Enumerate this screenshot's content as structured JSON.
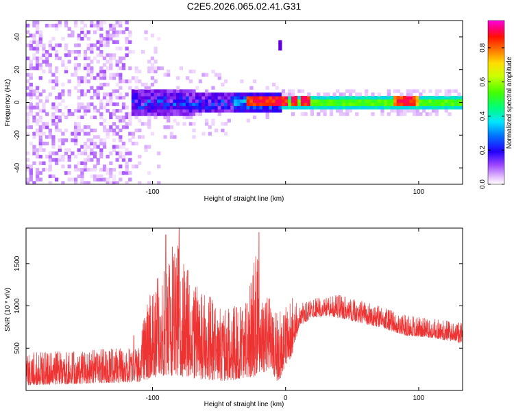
{
  "title": "C2E5.2026.065.02.41.G31",
  "colors": {
    "snr_line": "#ee3333",
    "colormap": [
      "#ffffff",
      "#e8c6ff",
      "#b266ff",
      "#6a00e0",
      "#2200ff",
      "#0066ff",
      "#00ccff",
      "#00ff88",
      "#44ff00",
      "#ccff00",
      "#ffee00",
      "#ff9900",
      "#ff2200",
      "#ff0066",
      "#ff00cc"
    ]
  },
  "chart_data": [
    {
      "type": "heatmap",
      "name": "spectrogram",
      "xlabel": "Height of straight line (km)",
      "ylabel": "Frequency (Hz)",
      "xlim": [
        -195,
        133
      ],
      "ylim": [
        -50,
        50
      ],
      "xticks": [
        -100,
        0,
        100
      ],
      "xtick_labels": [
        "-100",
        "",
        "100"
      ],
      "yticks": [
        -40,
        -20,
        0,
        20,
        40
      ],
      "ytick_labels": [
        "-40",
        "-20",
        "0",
        "20",
        "40"
      ],
      "description_points": {
        "noise_region_x": [
          -195,
          -115
        ],
        "band_center_hz": 0,
        "spike": {
          "x": -5,
          "y": 34
        },
        "hot_spots_x": [
          -28,
          -22,
          -16,
          -12,
          -6,
          -2,
          6,
          14,
          85,
          90,
          95
        ]
      }
    },
    {
      "type": "colorbar",
      "name": "amplitude-colorbar",
      "label": "Normalized spectral amplitude",
      "range": [
        0,
        0.96
      ],
      "ticks": [
        0.0,
        0.2,
        0.4,
        0.6,
        0.8
      ],
      "tick_labels": [
        "0.0",
        "0.2",
        "0.4",
        "0.6",
        "0.8"
      ]
    },
    {
      "type": "line",
      "name": "snr-plot",
      "xlabel": "Height of straight line (km)",
      "ylabel": "SNR (10 * v/v)",
      "xlim": [
        -195,
        133
      ],
      "ylim": [
        0,
        1920
      ],
      "xticks": [
        -100,
        0,
        100
      ],
      "xtick_labels": [
        "-100",
        "0",
        "100"
      ],
      "yticks": [
        500,
        1000,
        1500
      ],
      "ytick_labels": [
        "500",
        "1000",
        "1500"
      ],
      "envelope": {
        "x": [
          -195,
          -150,
          -110,
          -105,
          -100,
          -90,
          -80,
          -70,
          -60,
          -50,
          -40,
          -30,
          -22,
          -18,
          -12,
          -8,
          -5,
          0,
          5,
          10,
          20,
          30,
          40,
          50,
          70,
          90,
          110,
          133
        ],
        "base": [
          60,
          80,
          100,
          120,
          150,
          160,
          170,
          140,
          120,
          110,
          120,
          150,
          160,
          200,
          250,
          150,
          80,
          300,
          400,
          750,
          860,
          880,
          860,
          820,
          750,
          650,
          620,
          560
        ],
        "peak": [
          450,
          480,
          520,
          1000,
          1300,
          1500,
          1750,
          1300,
          1150,
          1050,
          1000,
          1050,
          1800,
          1100,
          1150,
          1000,
          950,
          1100,
          1100,
          1020,
          1080,
          1120,
          1130,
          1100,
          1000,
          900,
          850,
          800
        ]
      },
      "spikes": [
        {
          "x": -90,
          "y": 1840
        },
        {
          "x": -85,
          "y": 1700
        },
        {
          "x": -80,
          "y": 1920
        },
        {
          "x": -20,
          "y": 1870
        },
        {
          "x": -114,
          "y": 650
        }
      ]
    }
  ]
}
